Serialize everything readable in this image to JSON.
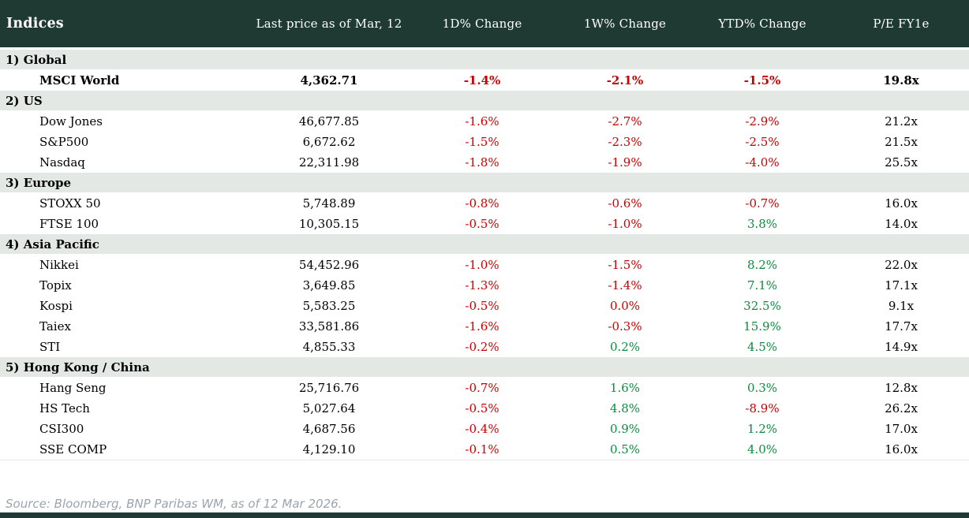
{
  "title": "Indices",
  "colors": {
    "header_bg": "#1f3933",
    "section_bg": "#e4e8e4",
    "negative": "#cc0000",
    "positive": "#0b8c3f",
    "source_text": "#9aa5ad",
    "footer_bar": "#1f3933"
  },
  "header": {
    "columns": [
      "Indices",
      "Last price as of Mar, 12",
      "1D% Change",
      "1W% Change",
      "YTD% Change",
      "P/E FY1e"
    ]
  },
  "sections": [
    {
      "label": "1) Global",
      "rows": [
        {
          "name": "MSCI World",
          "price": "4,362.71",
          "bold": true,
          "changes": [
            {
              "v": "-1.4%",
              "c": "neg"
            },
            {
              "v": "-2.1%",
              "c": "neg"
            },
            {
              "v": "-1.5%",
              "c": "neg"
            }
          ],
          "pe": "19.8x"
        }
      ]
    },
    {
      "label": "2) US",
      "rows": [
        {
          "name": "Dow Jones",
          "price": "46,677.85",
          "bold": false,
          "changes": [
            {
              "v": "-1.6%",
              "c": "neg"
            },
            {
              "v": "-2.7%",
              "c": "neg"
            },
            {
              "v": "-2.9%",
              "c": "neg"
            }
          ],
          "pe": "21.2x"
        },
        {
          "name": "S&P500",
          "price": "6,672.62",
          "bold": false,
          "changes": [
            {
              "v": "-1.5%",
              "c": "neg"
            },
            {
              "v": "-2.3%",
              "c": "neg"
            },
            {
              "v": "-2.5%",
              "c": "neg"
            }
          ],
          "pe": "21.5x"
        },
        {
          "name": "Nasdaq",
          "price": "22,311.98",
          "bold": false,
          "changes": [
            {
              "v": "-1.8%",
              "c": "neg"
            },
            {
              "v": "-1.9%",
              "c": "neg"
            },
            {
              "v": "-4.0%",
              "c": "neg"
            }
          ],
          "pe": "25.5x"
        }
      ]
    },
    {
      "label": "3) Europe",
      "rows": [
        {
          "name": "STOXX 50",
          "price": "5,748.89",
          "bold": false,
          "changes": [
            {
              "v": "-0.8%",
              "c": "neg"
            },
            {
              "v": "-0.6%",
              "c": "neg"
            },
            {
              "v": "-0.7%",
              "c": "neg"
            }
          ],
          "pe": "16.0x"
        },
        {
          "name": "FTSE 100",
          "price": "10,305.15",
          "bold": false,
          "changes": [
            {
              "v": "-0.5%",
              "c": "neg"
            },
            {
              "v": "-1.0%",
              "c": "neg"
            },
            {
              "v": "3.8%",
              "c": "pos"
            }
          ],
          "pe": "14.0x"
        }
      ]
    },
    {
      "label": "4) Asia Pacific",
      "rows": [
        {
          "name": "Nikkei",
          "price": "54,452.96",
          "bold": false,
          "changes": [
            {
              "v": "-1.0%",
              "c": "neg"
            },
            {
              "v": "-1.5%",
              "c": "neg"
            },
            {
              "v": "8.2%",
              "c": "pos"
            }
          ],
          "pe": "22.0x"
        },
        {
          "name": "Topix",
          "price": "3,649.85",
          "bold": false,
          "changes": [
            {
              "v": "-1.3%",
              "c": "neg"
            },
            {
              "v": "-1.4%",
              "c": "neg"
            },
            {
              "v": "7.1%",
              "c": "pos"
            }
          ],
          "pe": "17.1x"
        },
        {
          "name": "Kospi",
          "price": "5,583.25",
          "bold": false,
          "changes": [
            {
              "v": "-0.5%",
              "c": "neg"
            },
            {
              "v": "0.0%",
              "c": "neg"
            },
            {
              "v": "32.5%",
              "c": "pos"
            }
          ],
          "pe": "9.1x"
        },
        {
          "name": "Taiex",
          "price": "33,581.86",
          "bold": false,
          "changes": [
            {
              "v": "-1.6%",
              "c": "neg"
            },
            {
              "v": "-0.3%",
              "c": "neg"
            },
            {
              "v": "15.9%",
              "c": "pos"
            }
          ],
          "pe": "17.7x"
        },
        {
          "name": "STI",
          "price": "4,855.33",
          "bold": false,
          "changes": [
            {
              "v": "-0.2%",
              "c": "neg"
            },
            {
              "v": "0.2%",
              "c": "pos"
            },
            {
              "v": "4.5%",
              "c": "pos"
            }
          ],
          "pe": "14.9x"
        }
      ]
    },
    {
      "label": "5) Hong Kong / China",
      "rows": [
        {
          "name": "Hang Seng",
          "price": "25,716.76",
          "bold": false,
          "changes": [
            {
              "v": "-0.7%",
              "c": "neg"
            },
            {
              "v": "1.6%",
              "c": "pos"
            },
            {
              "v": "0.3%",
              "c": "pos"
            }
          ],
          "pe": "12.8x"
        },
        {
          "name": "HS Tech",
          "price": "5,027.64",
          "bold": false,
          "changes": [
            {
              "v": "-0.5%",
              "c": "neg"
            },
            {
              "v": "4.8%",
              "c": "pos"
            },
            {
              "v": "-8.9%",
              "c": "neg"
            }
          ],
          "pe": "26.2x"
        },
        {
          "name": "CSI300",
          "price": "4,687.56",
          "bold": false,
          "changes": [
            {
              "v": "-0.4%",
              "c": "neg"
            },
            {
              "v": "0.9%",
              "c": "pos"
            },
            {
              "v": "1.2%",
              "c": "pos"
            }
          ],
          "pe": "17.0x"
        },
        {
          "name": "SSE COMP",
          "price": "4,129.10",
          "bold": false,
          "changes": [
            {
              "v": "-0.1%",
              "c": "neg"
            },
            {
              "v": "0.5%",
              "c": "pos"
            },
            {
              "v": "4.0%",
              "c": "pos"
            }
          ],
          "pe": "16.0x"
        }
      ]
    }
  ],
  "footer": {
    "source": "Source: Bloomberg, BNP Paribas WM, as of 12 Mar 2026."
  }
}
